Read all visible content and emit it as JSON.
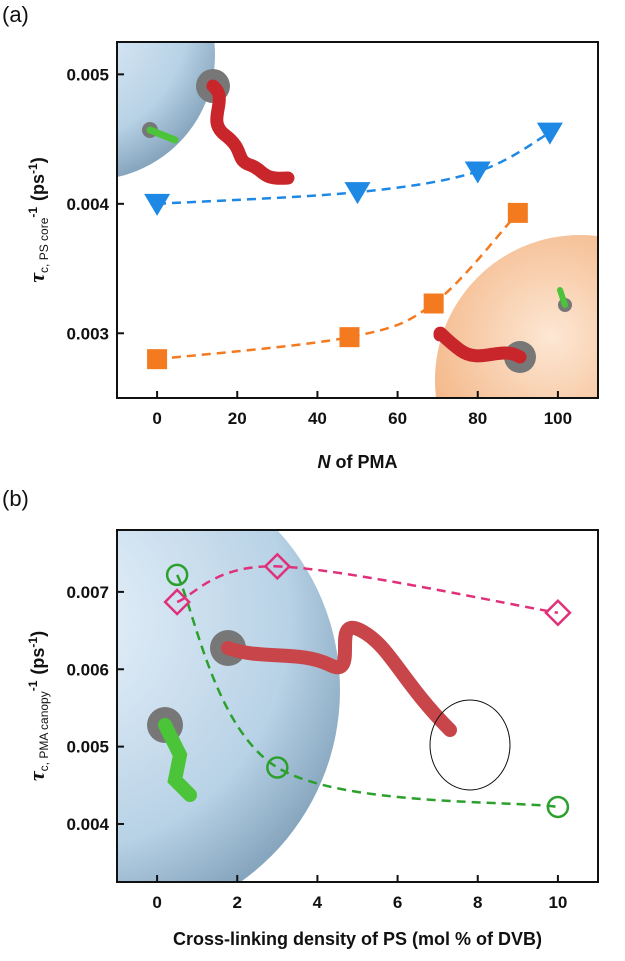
{
  "panels": [
    "(a)",
    "(b)"
  ],
  "chart_data": [
    {
      "type": "scatter",
      "x_label": {
        "italic": "N",
        "rest": "of PMA"
      },
      "y_label": {
        "symbol": "τ",
        "sub": "c, PS core",
        "sup": "-1",
        "unit": "(ps",
        "unit_sup": "-1",
        "close": ")"
      },
      "xlim": [
        -10,
        110
      ],
      "xticks": [
        0,
        20,
        40,
        60,
        80,
        100
      ],
      "ylim": [
        0.0025,
        0.00525
      ],
      "yticks": [
        0.003,
        0.004,
        0.005
      ],
      "series": [
        {
          "marker": "triangle-down",
          "color": "#1e88e5",
          "x": [
            0,
            50,
            80,
            98
          ],
          "values": [
            0.004,
            0.00409,
            0.00425,
            0.00455
          ]
        },
        {
          "marker": "square",
          "color": "#f47a1f",
          "x": [
            0,
            48,
            69,
            90
          ],
          "values": [
            0.0028,
            0.00297,
            0.00323,
            0.00393
          ]
        }
      ]
    },
    {
      "type": "scatter",
      "x_label": {
        "italic": "",
        "rest": "Cross-linking density of PS (mol % of DVB)"
      },
      "y_label": {
        "symbol": "τ",
        "sub": "c, PMA canopy",
        "sup": "-1",
        "unit": "(ps",
        "unit_sup": "-1",
        "close": ")"
      },
      "xlim": [
        -1,
        11
      ],
      "xticks": [
        0,
        2,
        4,
        6,
        8,
        10
      ],
      "ylim": [
        0.00325,
        0.0078
      ],
      "yticks": [
        0.004,
        0.005,
        0.006,
        0.007
      ],
      "series": [
        {
          "marker": "circle-open",
          "color": "#2ca02c",
          "x": [
            0.5,
            3,
            10
          ],
          "values": [
            0.00722,
            0.00473,
            0.00422
          ]
        },
        {
          "marker": "diamond-open",
          "color": "#e0307a",
          "x": [
            0.5,
            3,
            10
          ],
          "values": [
            0.00687,
            0.00733,
            0.00673
          ]
        }
      ]
    }
  ]
}
